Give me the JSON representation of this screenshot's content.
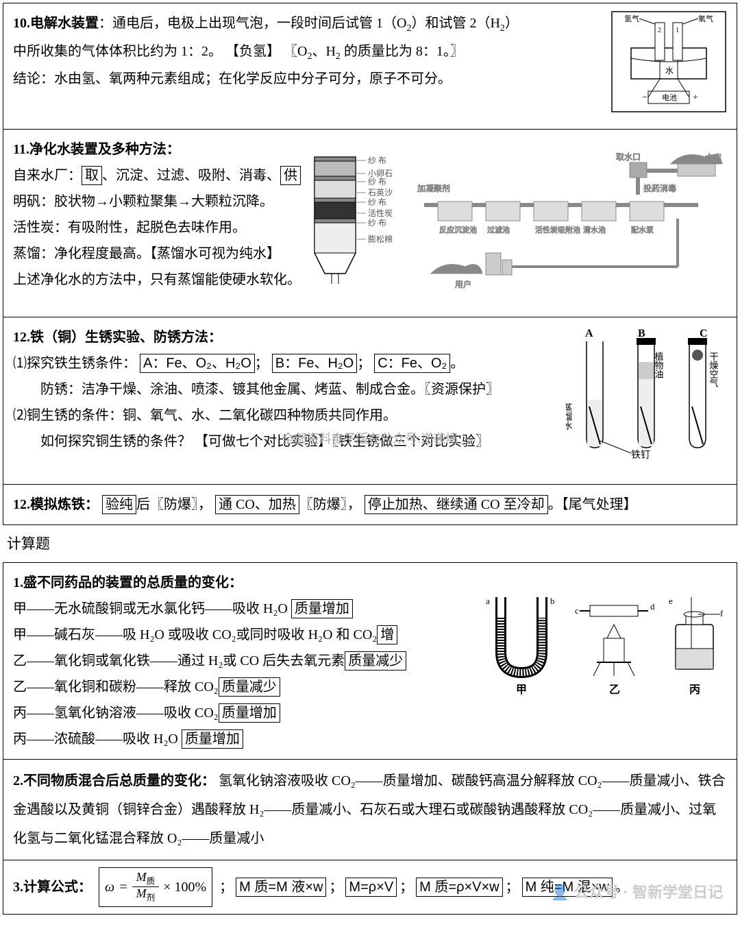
{
  "section10": {
    "title": "10.电解水装置",
    "line1a": "：通电后，电极上出现气泡，一段时间后试管 1（O",
    "line1b": "）和试管 2（H",
    "line1c": "）",
    "line2a": "中所收集的气体体积比约为 1：2。 【负氢】   〖O",
    "line2b": "、H",
    "line2c": " 的质量比为 8：1。〗",
    "line3": "结论：水由氢、氧两种元素组成；在化学反应中分子可分，原子不可分。",
    "fig": {
      "h2": "氢气",
      "o2": "氧气",
      "water": "水",
      "battery": "电池",
      "tube1": "2",
      "tube2": "1"
    }
  },
  "section11": {
    "title": "11.净化水装置及多种方法：",
    "l1a": "自来水厂：",
    "l1b": "取",
    "l1c": "、沉淀、过滤、吸附、消毒、",
    "l1d": "供",
    "l2": "明矾：胶状物→小颗粒聚集→大颗粒沉降。",
    "l3": "活性炭：有吸附性，起脱色去味作用。",
    "l4": "蒸馏：净化程度最高。【蒸馏水可视为纯水】",
    "l5": "上述净化水的方法中，只有蒸馏能使硬水软化。",
    "layers": [
      "纱 布",
      "小卵石",
      "纱 布",
      "石英沙",
      "纱 布",
      "活性炭",
      "纱 布",
      "膨松棉"
    ],
    "plant": [
      "加凝聚剂",
      "反应沉淀池",
      "过滤池",
      "活性炭吸附池",
      "清水池",
      "配水泵",
      "投药消毒",
      "取水口",
      "水库",
      "用户"
    ]
  },
  "section12": {
    "title": "12.铁（铜）生锈实验、防锈方法：",
    "p1a": "⑴探究铁生锈条件：",
    "boxA": "A：Fe、O₂、H₂O",
    "sep1": "；",
    "boxB": "B：Fe、H₂O",
    "sep2": "；",
    "boxC": "C：Fe、O₂",
    "p1end": "。",
    "p2": "　　防锈：洁净干燥、涂油、喷漆、镀其他金属、烤蓝、制成合金。〖资源保护〗",
    "p3": "⑵铜生锈的条件：铜、氧气、水、二氧化碳四种物质共同作用。",
    "p4a": "　　如何探究铜生锈的条件？ 【",
    "p4b": "可做七个对比实验",
    "p4c": "】〖铁生锈做三个对比实验〗",
    "wm": "全部资料电子版在公众号:逆袭墙",
    "fig": {
      "A": "A",
      "B": "B",
      "C": "C",
      "l1": "蒸馏水",
      "l2": "植物油",
      "l3": "干燥空气",
      "nail": "铁钉"
    }
  },
  "section12b": {
    "title": "12.模拟炼铁：",
    "b1": "验纯",
    "t1": "后〖防爆〗，",
    "b2": "通 CO、加热",
    "t2": "〖防爆〗，",
    "b3": "停止加热、继续通 CO 至冷却",
    "t3": "。【尾气处理】"
  },
  "calcTitle": "计算题",
  "calc1": {
    "title": "1.盛不同药品的装置的总质量的变化：",
    "r1a": "甲——无水硫酸铜或无水氯化钙——吸收 H₂O ",
    "r1b": "质量增加",
    "r2a": "甲——碱石灰——吸 H₂O 或吸收 CO₂或同时吸收 H₂O 和 CO₂",
    "r2b": "增",
    "r3a": "乙——氧化铜或氧化铁——通过 H₂或 CO 后失去氧元素",
    "r3b": "质量减少",
    "r4a": "乙——氧化铜和碳粉——释放 CO₂",
    "r4b": "质量减少",
    "r5a": "丙——氢氧化钠溶液——吸收 CO₂",
    "r5b": "质量增加",
    "r6a": "丙——浓硫酸——吸收 H₂O ",
    "r6b": "质量增加",
    "fig": {
      "jia": "甲",
      "yi": "乙",
      "bing": "丙",
      "a": "a",
      "b": "b",
      "c": "c",
      "d": "d",
      "e": "e",
      "f": "f"
    }
  },
  "calc2": {
    "title": "2.不同物质混合后总质量的变化：",
    "body": "氢氧化钠溶液吸收 CO₂——质量增加、碳酸钙高温分解释放 CO₂——质量减小、铁合金遇酸以及黄铜（铜锌合金）遇酸释放 H₂——质量减小、石灰石或大理石或碳酸钠遇酸释放 CO₂——质量减小、过氧化氢与二氧化锰混合释放 O₂——质量减小"
  },
  "calc3": {
    "title": "3.计算公式：",
    "f_omega": "ω",
    "f_eq": "=",
    "f_num": "M",
    "f_num_sub": "质",
    "f_den": "M",
    "f_den_sub": "剂",
    "f_pct": "× 100%",
    "f2": "M 质=M 液×w",
    "f3": "M=ρ×V",
    "f4": "M 质=ρ×V×w",
    "f5": "M 纯=M 混×w",
    "sep": "；",
    "end": "。"
  },
  "footerWm": "公众号 · 智新学堂日记"
}
